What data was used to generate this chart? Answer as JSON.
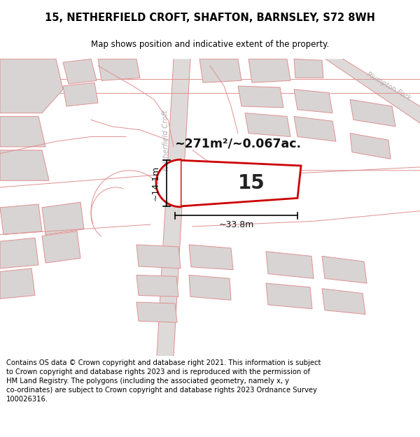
{
  "title": "15, NETHERFIELD CROFT, SHAFTON, BARNSLEY, S72 8WH",
  "subtitle": "Map shows position and indicative extent of the property.",
  "footer": "Contains OS data © Crown copyright and database right 2021. This information is subject\nto Crown copyright and database rights 2023 and is reproduced with the permission of\nHM Land Registry. The polygons (including the associated geometry, namely x, y\nco-ordinates) are subject to Crown copyright and database rights 2023 Ordnance Survey\n100026316.",
  "area_text": "~271m²/~0.067ac.",
  "width_text": "~33.8m",
  "height_text": "~14.1m",
  "plot_number": "15",
  "map_bg": "#f2efef",
  "building_fill": "#d8d4d4",
  "building_stroke": "#e09090",
  "road_stroke": "#e09090",
  "highlight_fill": "#ffffff",
  "highlight_stroke": "#cc0000",
  "road_label_color": "#b0b0b0",
  "title_fontsize": 10.5,
  "subtitle_fontsize": 8.5,
  "footer_fontsize": 7.2
}
